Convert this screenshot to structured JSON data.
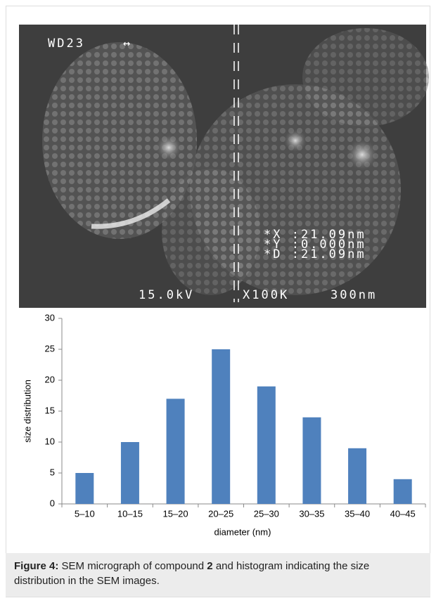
{
  "image_labels": {
    "wd": "WD23",
    "kv": "15.0kV",
    "mag": "X100K",
    "scale": "300nm",
    "x": "*X :21.09nm",
    "y": "*Y :0.000nm",
    "d": "*D :21.09nm"
  },
  "chart_data": {
    "type": "bar",
    "x_label": "diameter (nm)",
    "y_label": "size distribution",
    "categories": [
      "5–10",
      "10–15",
      "15–20",
      "20–25",
      "25–30",
      "30–35",
      "35–40",
      "40–45"
    ],
    "values": [
      5,
      10,
      17,
      25,
      19,
      14,
      9,
      4
    ],
    "color": "#4f81bd",
    "ylim": [
      0,
      30
    ],
    "yticks": [
      0,
      5,
      10,
      15,
      20,
      25,
      30
    ],
    "grid": false
  },
  "caption": {
    "label": "Figure 4:",
    "text_1": "SEM micrograph of compound",
    "compound": "2",
    "text_2": "and histogram indicating the size distribution in the SEM images."
  }
}
